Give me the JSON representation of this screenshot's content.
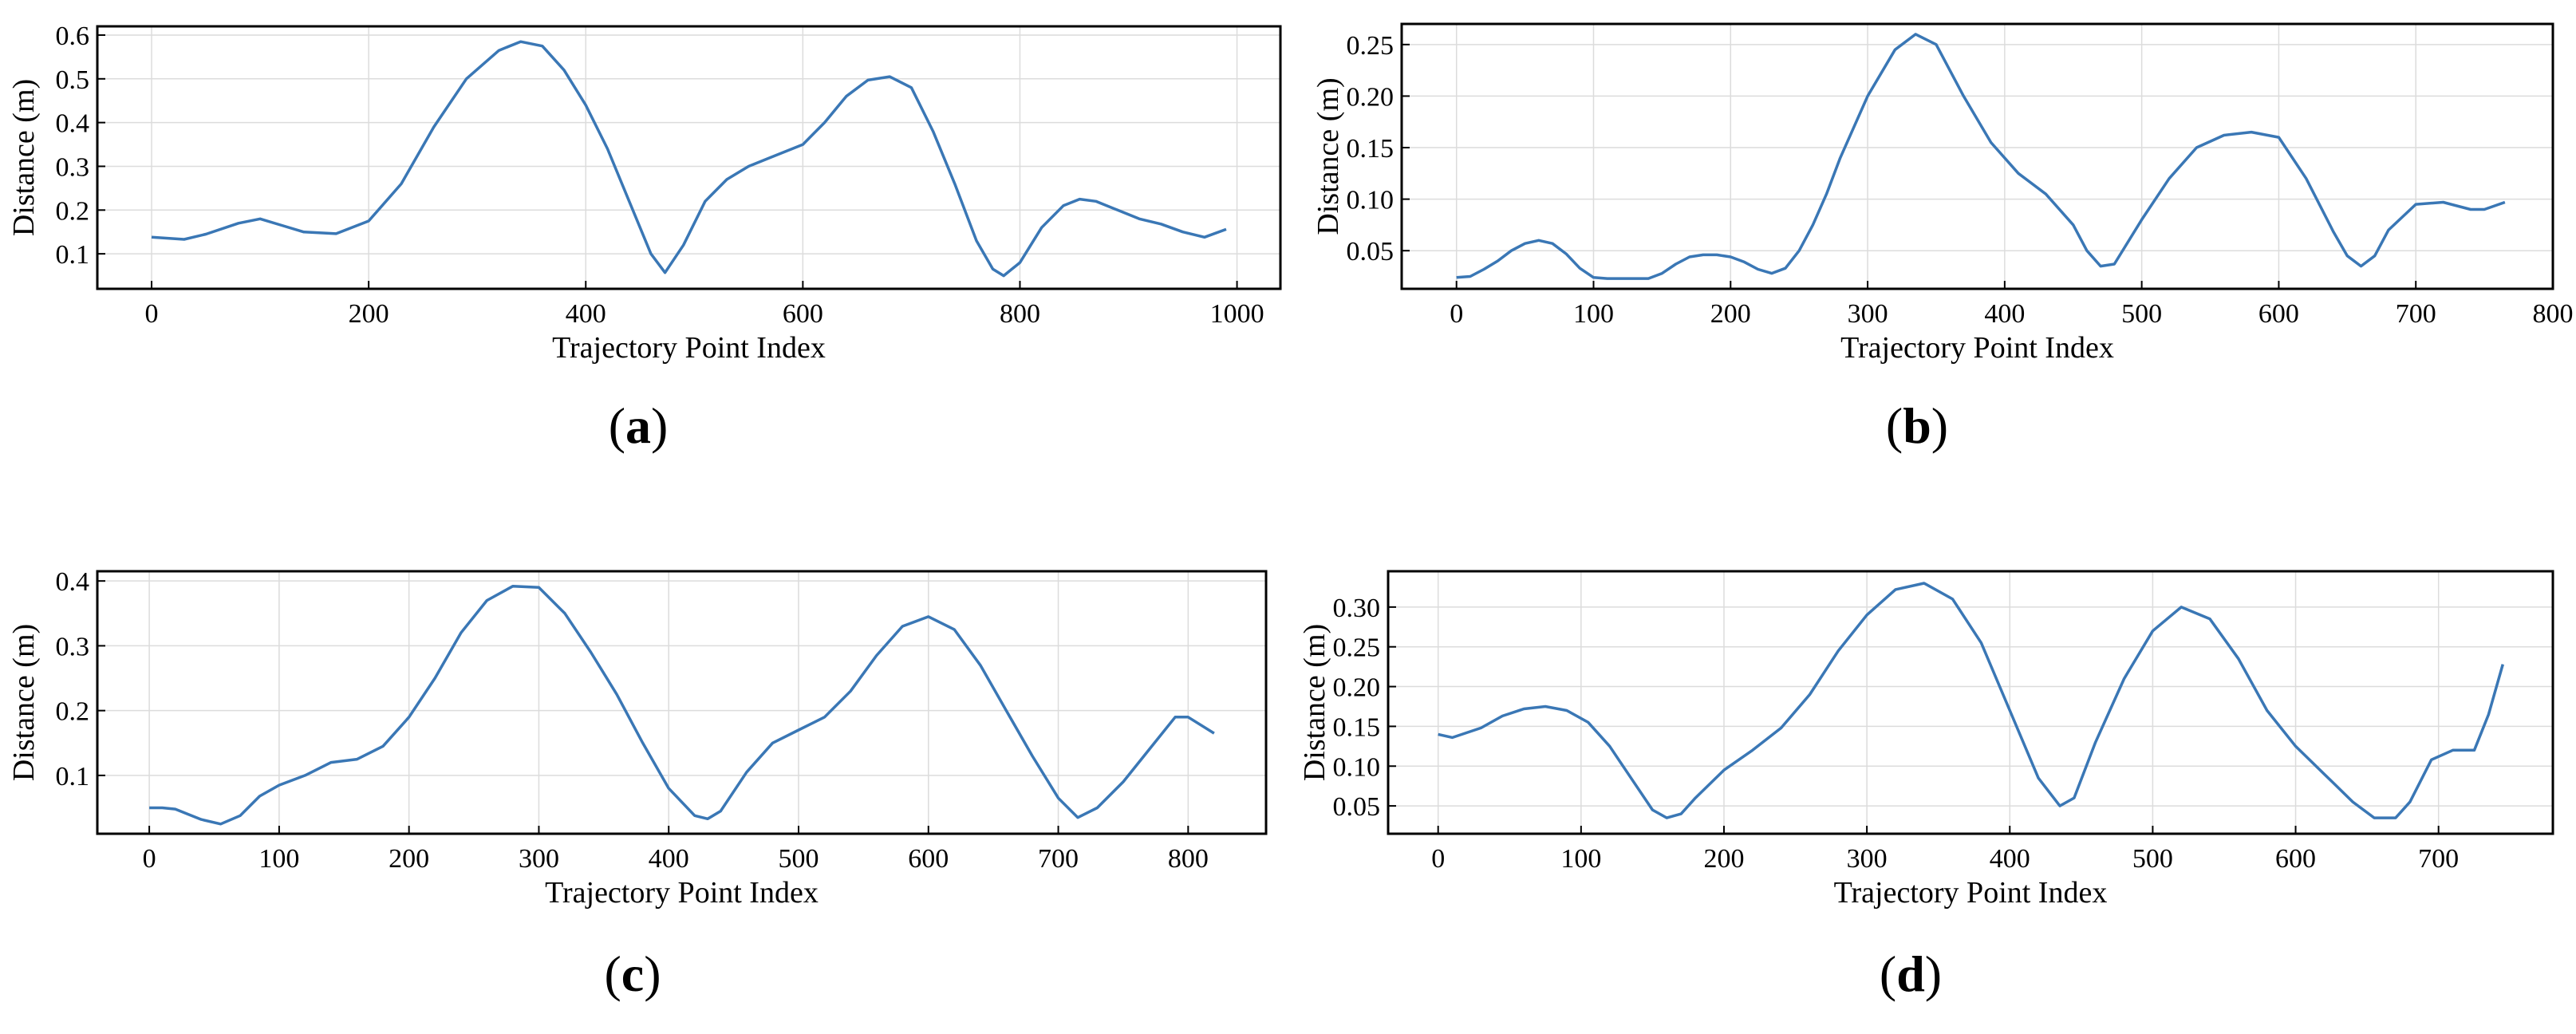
{
  "chart_data": [
    {
      "type": "line",
      "panel_label": "a",
      "xlabel": "Trajectory Point Index",
      "ylabel": "Distance (m)",
      "xlim": [
        -50,
        1040
      ],
      "ylim": [
        0.02,
        0.62
      ],
      "xticks": [
        0,
        200,
        400,
        600,
        800,
        1000
      ],
      "xtick_labels": [
        "0",
        "200",
        "400",
        "600",
        "800",
        "1000"
      ],
      "yticks": [
        0.1,
        0.2,
        0.3,
        0.4,
        0.5,
        0.6
      ],
      "ytick_labels": [
        "0.1",
        "0.2",
        "0.3",
        "0.4",
        "0.5",
        "0.6"
      ],
      "grid": true,
      "line_color": "#3a77b5",
      "series": [
        {
          "x": [
            0,
            30,
            50,
            80,
            100,
            120,
            140,
            170,
            200,
            230,
            260,
            290,
            320,
            340,
            360,
            380,
            400,
            420,
            440,
            460,
            473,
            490,
            510,
            530,
            550,
            570,
            600,
            620,
            640,
            660,
            680,
            700,
            720,
            740,
            760,
            775,
            785,
            800,
            820,
            840,
            855,
            870,
            890,
            910,
            930,
            950,
            970,
            990
          ],
          "y": [
            0.138,
            0.133,
            0.145,
            0.17,
            0.18,
            0.165,
            0.15,
            0.146,
            0.175,
            0.26,
            0.39,
            0.5,
            0.565,
            0.585,
            0.575,
            0.52,
            0.44,
            0.34,
            0.22,
            0.1,
            0.057,
            0.12,
            0.22,
            0.27,
            0.3,
            0.32,
            0.35,
            0.4,
            0.46,
            0.497,
            0.505,
            0.48,
            0.38,
            0.26,
            0.13,
            0.065,
            0.05,
            0.08,
            0.16,
            0.21,
            0.225,
            0.22,
            0.2,
            0.18,
            0.168,
            0.15,
            0.138,
            0.156
          ]
        }
      ]
    },
    {
      "type": "line",
      "panel_label": "b",
      "xlabel": "Trajectory Point Index",
      "ylabel": "Distance (m)",
      "xlim": [
        -40,
        800
      ],
      "ylim": [
        0.013,
        0.27
      ],
      "xticks": [
        0,
        100,
        200,
        300,
        400,
        500,
        600,
        700,
        800
      ],
      "xtick_labels": [
        "0",
        "100",
        "200",
        "300",
        "400",
        "500",
        "600",
        "700",
        "800"
      ],
      "yticks": [
        0.05,
        0.1,
        0.15,
        0.2,
        0.25
      ],
      "ytick_labels": [
        "0.05",
        "0.10",
        "0.15",
        "0.20",
        "0.25"
      ],
      "grid": true,
      "line_color": "#3a77b5",
      "series": [
        {
          "x": [
            0,
            10,
            20,
            30,
            40,
            50,
            60,
            70,
            80,
            90,
            100,
            110,
            130,
            140,
            150,
            160,
            170,
            180,
            190,
            200,
            210,
            220,
            230,
            240,
            250,
            260,
            270,
            280,
            300,
            320,
            335,
            350,
            370,
            390,
            410,
            430,
            450,
            460,
            470,
            480,
            500,
            520,
            540,
            560,
            580,
            600,
            620,
            640,
            650,
            660,
            670,
            680,
            700,
            720,
            740,
            750,
            765
          ],
          "y": [
            0.024,
            0.025,
            0.032,
            0.04,
            0.05,
            0.057,
            0.06,
            0.057,
            0.047,
            0.033,
            0.024,
            0.023,
            0.023,
            0.023,
            0.028,
            0.037,
            0.044,
            0.046,
            0.046,
            0.044,
            0.039,
            0.032,
            0.028,
            0.033,
            0.05,
            0.075,
            0.105,
            0.14,
            0.2,
            0.245,
            0.26,
            0.25,
            0.2,
            0.155,
            0.125,
            0.105,
            0.075,
            0.05,
            0.035,
            0.037,
            0.08,
            0.12,
            0.15,
            0.162,
            0.165,
            0.16,
            0.12,
            0.068,
            0.045,
            0.035,
            0.045,
            0.07,
            0.095,
            0.097,
            0.09,
            0.09,
            0.097
          ]
        }
      ]
    },
    {
      "type": "line",
      "panel_label": "c",
      "xlabel": "Trajectory Point Index",
      "ylabel": "Distance (m)",
      "xlim": [
        -40,
        860
      ],
      "ylim": [
        0.01,
        0.415
      ],
      "xticks": [
        0,
        100,
        200,
        300,
        400,
        500,
        600,
        700,
        800
      ],
      "xtick_labels": [
        "0",
        "100",
        "200",
        "300",
        "400",
        "500",
        "600",
        "700",
        "800"
      ],
      "yticks": [
        0.1,
        0.2,
        0.3,
        0.4
      ],
      "ytick_labels": [
        "0.1",
        "0.2",
        "0.3",
        "0.4"
      ],
      "grid": true,
      "line_color": "#3a77b5",
      "series": [
        {
          "x": [
            0,
            10,
            20,
            30,
            40,
            55,
            70,
            85,
            100,
            120,
            140,
            160,
            180,
            200,
            220,
            240,
            260,
            280,
            300,
            320,
            340,
            360,
            380,
            400,
            420,
            430,
            440,
            460,
            480,
            500,
            520,
            540,
            560,
            580,
            600,
            620,
            640,
            660,
            680,
            700,
            715,
            730,
            750,
            770,
            790,
            800,
            820
          ],
          "y": [
            0.05,
            0.05,
            0.048,
            0.04,
            0.032,
            0.025,
            0.038,
            0.068,
            0.085,
            0.1,
            0.12,
            0.125,
            0.145,
            0.19,
            0.25,
            0.32,
            0.37,
            0.392,
            0.39,
            0.35,
            0.29,
            0.225,
            0.15,
            0.08,
            0.038,
            0.033,
            0.045,
            0.105,
            0.15,
            0.17,
            0.19,
            0.23,
            0.285,
            0.33,
            0.345,
            0.325,
            0.27,
            0.2,
            0.13,
            0.065,
            0.035,
            0.05,
            0.09,
            0.14,
            0.19,
            0.19,
            0.165
          ]
        }
      ]
    },
    {
      "type": "line",
      "panel_label": "d",
      "xlabel": "Trajectory Point Index",
      "ylabel": "Distance (m)",
      "xlim": [
        -35,
        780
      ],
      "ylim": [
        0.015,
        0.345
      ],
      "xticks": [
        0,
        100,
        200,
        300,
        400,
        500,
        600,
        700
      ],
      "xtick_labels": [
        "0",
        "100",
        "200",
        "300",
        "400",
        "500",
        "600",
        "700"
      ],
      "yticks": [
        0.05,
        0.1,
        0.15,
        0.2,
        0.25,
        0.3
      ],
      "ytick_labels": [
        "0.05",
        "0.10",
        "0.15",
        "0.20",
        "0.25",
        "0.30"
      ],
      "grid": true,
      "line_color": "#3a77b5",
      "series": [
        {
          "x": [
            0,
            10,
            20,
            30,
            45,
            60,
            75,
            90,
            105,
            120,
            135,
            150,
            160,
            170,
            180,
            200,
            220,
            240,
            260,
            280,
            300,
            320,
            340,
            360,
            380,
            400,
            420,
            435,
            445,
            460,
            480,
            500,
            520,
            540,
            560,
            580,
            600,
            620,
            640,
            655,
            670,
            680,
            695,
            710,
            725,
            735,
            745
          ],
          "y": [
            0.14,
            0.136,
            0.142,
            0.148,
            0.163,
            0.172,
            0.175,
            0.17,
            0.155,
            0.125,
            0.085,
            0.045,
            0.035,
            0.04,
            0.06,
            0.095,
            0.12,
            0.148,
            0.19,
            0.245,
            0.29,
            0.322,
            0.33,
            0.31,
            0.255,
            0.17,
            0.085,
            0.05,
            0.06,
            0.13,
            0.21,
            0.27,
            0.3,
            0.285,
            0.235,
            0.17,
            0.125,
            0.09,
            0.055,
            0.035,
            0.035,
            0.055,
            0.108,
            0.12,
            0.12,
            0.165,
            0.228
          ]
        }
      ]
    }
  ]
}
